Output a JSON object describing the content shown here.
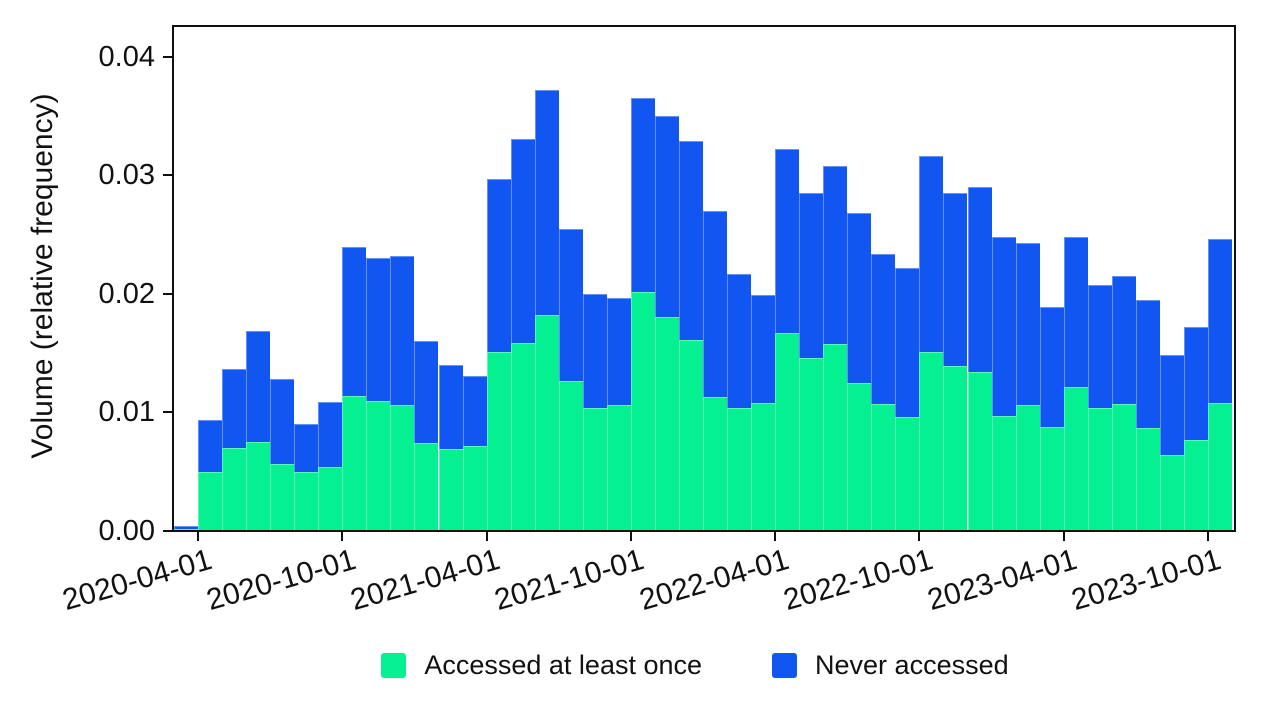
{
  "chart": {
    "ylabel": "Volume (relative frequency)",
    "y_tick_labels": [
      "0.00",
      "0.01",
      "0.02",
      "0.03",
      "0.04"
    ],
    "x_tick_labels": [
      "2020-04-01",
      "2020-10-01",
      "2021-04-01",
      "2021-10-01",
      "2022-04-01",
      "2022-10-01",
      "2023-04-01",
      "2023-10-01"
    ],
    "legend": [
      {
        "label": "Accessed at least once",
        "color": "#05F191"
      },
      {
        "label": "Never accessed",
        "color": "#1156F1"
      }
    ],
    "ink_color": "#0f0f0f"
  },
  "chart_data": {
    "type": "bar",
    "stacked": true,
    "title": "",
    "xlabel": "",
    "ylabel": "Volume (relative frequency)",
    "ylim": [
      0,
      0.0425
    ],
    "y_tick_values": [
      0,
      0.01,
      0.02,
      0.03,
      0.04
    ],
    "grid": false,
    "legend_position": "bottom",
    "x": [
      "2020-03",
      "2020-04",
      "2020-05",
      "2020-06",
      "2020-07",
      "2020-08",
      "2020-09",
      "2020-10",
      "2020-11",
      "2020-12",
      "2021-01",
      "2021-02",
      "2021-03",
      "2021-04",
      "2021-05",
      "2021-06",
      "2021-07",
      "2021-08",
      "2021-09",
      "2021-10",
      "2021-11",
      "2021-12",
      "2022-01",
      "2022-02",
      "2022-03",
      "2022-04",
      "2022-05",
      "2022-06",
      "2022-07",
      "2022-08",
      "2022-09",
      "2022-10",
      "2022-11",
      "2022-12",
      "2023-01",
      "2023-02",
      "2023-03",
      "2023-04",
      "2023-05",
      "2023-06",
      "2023-07",
      "2023-08",
      "2023-09",
      "2023-10"
    ],
    "x_tick_positions": [
      1,
      7,
      13,
      19,
      25,
      31,
      37,
      43
    ],
    "series": [
      {
        "name": "Accessed at least once",
        "color": "#05F191",
        "values": [
          0.0001,
          0.0049,
          0.0069,
          0.0074,
          0.0056,
          0.0049,
          0.0053,
          0.0113,
          0.0109,
          0.0105,
          0.0073,
          0.0068,
          0.0071,
          0.015,
          0.0158,
          0.0181,
          0.0126,
          0.0103,
          0.0105,
          0.0201,
          0.018,
          0.016,
          0.0112,
          0.0103,
          0.0107,
          0.0166,
          0.0145,
          0.0157,
          0.0124,
          0.0106,
          0.0095,
          0.015,
          0.0138,
          0.0133,
          0.0096,
          0.0105,
          0.0087,
          0.0121,
          0.0103,
          0.0106,
          0.0086,
          0.0063,
          0.0076,
          0.0107
        ]
      },
      {
        "name": "Never accessed",
        "color": "#1156F1",
        "values": [
          0.0002,
          0.0044,
          0.0067,
          0.0094,
          0.0071,
          0.004,
          0.0055,
          0.0126,
          0.012,
          0.0126,
          0.0086,
          0.0071,
          0.0059,
          0.0146,
          0.0172,
          0.019,
          0.0128,
          0.0096,
          0.0091,
          0.0163,
          0.0169,
          0.0168,
          0.0157,
          0.0113,
          0.0091,
          0.0155,
          0.0139,
          0.015,
          0.0143,
          0.0127,
          0.0126,
          0.0165,
          0.0146,
          0.0156,
          0.0151,
          0.0137,
          0.0101,
          0.0126,
          0.0104,
          0.0108,
          0.0108,
          0.0085,
          0.0095,
          0.0138
        ]
      }
    ]
  }
}
